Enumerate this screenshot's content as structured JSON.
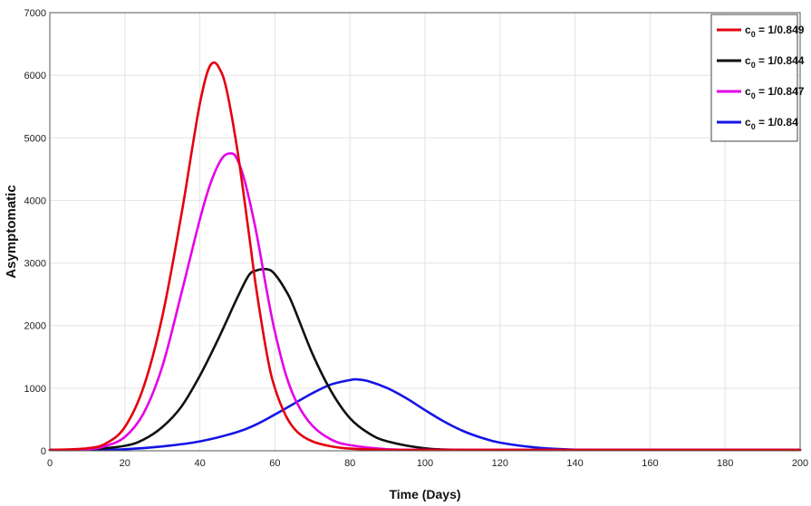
{
  "chart_data": {
    "type": "line",
    "title": "",
    "xlabel": "Time (Days)",
    "ylabel": "Asymptomatic",
    "xlim": [
      0,
      200
    ],
    "ylim": [
      0,
      7000
    ],
    "xticks": [
      0,
      20,
      40,
      60,
      80,
      100,
      120,
      140,
      160,
      180,
      200
    ],
    "yticks": [
      0,
      1000,
      2000,
      3000,
      4000,
      5000,
      6000,
      7000
    ],
    "grid": true,
    "legend_position": "top-right",
    "series": [
      {
        "name": "c0 = 1/0.849",
        "legend_main": "c",
        "legend_sub": "0",
        "legend_rest": " = 1/0.849",
        "color": "#e3000f",
        "x": [
          0,
          10,
          15,
          20,
          25,
          30,
          35,
          38,
          40,
          42,
          43.5,
          45,
          47,
          50,
          53,
          55,
          58,
          60,
          63,
          66,
          70,
          75,
          80,
          90,
          100,
          200
        ],
        "y": [
          5,
          40,
          120,
          380,
          1020,
          2150,
          3750,
          4850,
          5550,
          6050,
          6200,
          6130,
          5800,
          4800,
          3500,
          2600,
          1500,
          1000,
          550,
          300,
          150,
          70,
          35,
          10,
          3,
          0
        ]
      },
      {
        "name": "c0 = 1/0.844",
        "legend_main": "c",
        "legend_sub": "0",
        "legend_rest": " = 1/0.844",
        "color": "#111111",
        "x": [
          0,
          10,
          20,
          25,
          30,
          35,
          40,
          45,
          50,
          53,
          55,
          58,
          60,
          63,
          65,
          70,
          75,
          80,
          85,
          90,
          100,
          110,
          120,
          200
        ],
        "y": [
          5,
          20,
          80,
          180,
          380,
          700,
          1200,
          1800,
          2450,
          2800,
          2880,
          2900,
          2820,
          2550,
          2300,
          1550,
          950,
          520,
          280,
          150,
          40,
          10,
          3,
          0
        ]
      },
      {
        "name": "c0 = 1/0.847",
        "legend_main": "c",
        "legend_sub": "0",
        "legend_rest": " = 1/0.847",
        "color": "#e600e6",
        "x": [
          0,
          10,
          15,
          20,
          25,
          30,
          35,
          40,
          43,
          46,
          48.5,
          50,
          52,
          55,
          58,
          60,
          63,
          66,
          70,
          75,
          80,
          90,
          100,
          110,
          200
        ],
        "y": [
          5,
          25,
          80,
          220,
          600,
          1350,
          2500,
          3700,
          4300,
          4680,
          4750,
          4650,
          4300,
          3500,
          2500,
          1900,
          1200,
          750,
          400,
          180,
          90,
          25,
          8,
          2,
          0
        ]
      },
      {
        "name": "c0 = 1/0.84",
        "legend_main": "c",
        "legend_sub": "0",
        "legend_rest": " = 1/0.84",
        "color": "#1414e6",
        "x": [
          0,
          10,
          20,
          30,
          40,
          50,
          55,
          60,
          65,
          70,
          75,
          80,
          82,
          85,
          90,
          95,
          100,
          105,
          110,
          115,
          120,
          130,
          140,
          150,
          160,
          200
        ],
        "y": [
          2,
          8,
          25,
          70,
          150,
          300,
          420,
          580,
          750,
          920,
          1060,
          1130,
          1140,
          1110,
          1000,
          840,
          650,
          470,
          320,
          210,
          130,
          50,
          18,
          6,
          2,
          0
        ]
      }
    ]
  }
}
